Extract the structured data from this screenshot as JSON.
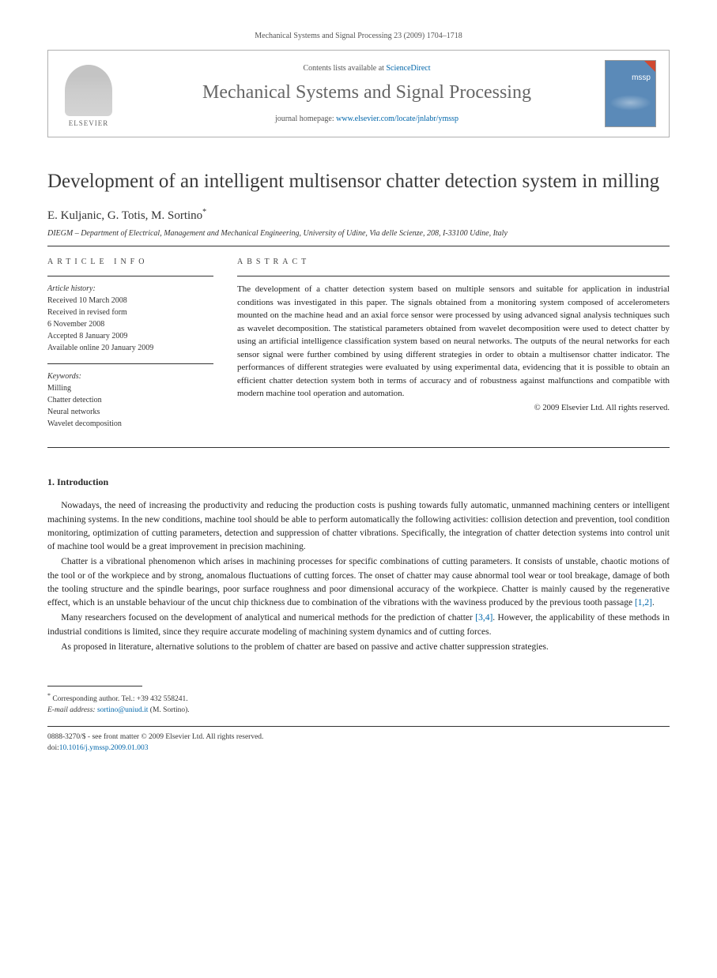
{
  "header": {
    "running": "Mechanical Systems and Signal Processing 23 (2009) 1704–1718"
  },
  "banner": {
    "publisher": "ELSEVIER",
    "contents_prefix": "Contents lists available at ",
    "contents_link": "ScienceDirect",
    "journal": "Mechanical Systems and Signal Processing",
    "homepage_prefix": "journal homepage: ",
    "homepage_url": "www.elsevier.com/locate/jnlabr/ymssp",
    "cover_label": "mssp"
  },
  "article": {
    "title": "Development of an intelligent multisensor chatter detection system in milling",
    "authors": "E. Kuljanic, G. Totis, M. Sortino",
    "corr_mark": "*",
    "affiliation": "DIEGM – Department of Electrical, Management and Mechanical Engineering, University of Udine, Via delle Scienze, 208, I-33100 Udine, Italy"
  },
  "info": {
    "label": "ARTICLE INFO",
    "history_label": "Article history:",
    "received": "Received 10 March 2008",
    "revised1": "Received in revised form",
    "revised2": "6 November 2008",
    "accepted": "Accepted 8 January 2009",
    "online": "Available online 20 January 2009",
    "keywords_label": "Keywords:",
    "kw1": "Milling",
    "kw2": "Chatter detection",
    "kw3": "Neural networks",
    "kw4": "Wavelet decomposition"
  },
  "abstract": {
    "label": "ABSTRACT",
    "text": "The development of a chatter detection system based on multiple sensors and suitable for application in industrial conditions was investigated in this paper. The signals obtained from a monitoring system composed of accelerometers mounted on the machine head and an axial force sensor were processed by using advanced signal analysis techniques such as wavelet decomposition. The statistical parameters obtained from wavelet decomposition were used to detect chatter by using an artificial intelligence classification system based on neural networks. The outputs of the neural networks for each sensor signal were further combined by using different strategies in order to obtain a multisensor chatter indicator. The performances of different strategies were evaluated by using experimental data, evidencing that it is possible to obtain an efficient chatter detection system both in terms of accuracy and of robustness against malfunctions and compatible with modern machine tool operation and automation.",
    "copyright": "© 2009 Elsevier Ltd. All rights reserved."
  },
  "sections": {
    "intro_heading": "1.  Introduction",
    "p1": "Nowadays, the need of increasing the productivity and reducing the production costs is pushing towards fully automatic, unmanned machining centers or intelligent machining systems. In the new conditions, machine tool should be able to perform automatically the following activities: collision detection and prevention, tool condition monitoring, optimization of cutting parameters, detection and suppression of chatter vibrations. Specifically, the integration of chatter detection systems into control unit of machine tool would be a great improvement in precision machining.",
    "p2a": "Chatter is a vibrational phenomenon which arises in machining processes for specific combinations of cutting parameters. It consists of unstable, chaotic motions of the tool or of the workpiece and by strong, anomalous fluctuations of cutting forces. The onset of chatter may cause abnormal tool wear or tool breakage, damage of both the tooling structure and the spindle bearings, poor surface roughness and poor dimensional accuracy of the workpiece. Chatter is mainly caused by the regenerative effect, which is an unstable behaviour of the uncut chip thickness due to combination of the vibrations with the waviness produced by the previous tooth passage ",
    "p2_ref": "[1,2]",
    "p2b": ".",
    "p3a": "Many researchers focused on the development of analytical and numerical methods for the prediction of chatter ",
    "p3_ref": "[3,4]",
    "p3b": ". However, the applicability of these methods in industrial conditions is limited, since they require accurate modeling of machining system dynamics and of cutting forces.",
    "p4": "As proposed in literature, alternative solutions to the problem of chatter are based on passive and active chatter suppression strategies."
  },
  "footnote": {
    "corr": "Corresponding author. Tel.: +39 432 558241.",
    "email_label": "E-mail address:",
    "email": "sortino@uniud.it",
    "email_who": "(M. Sortino)."
  },
  "footer": {
    "line1": "0888-3270/$ - see front matter © 2009 Elsevier Ltd. All rights reserved.",
    "doi_prefix": "doi:",
    "doi": "10.1016/j.ymssp.2009.01.003"
  }
}
